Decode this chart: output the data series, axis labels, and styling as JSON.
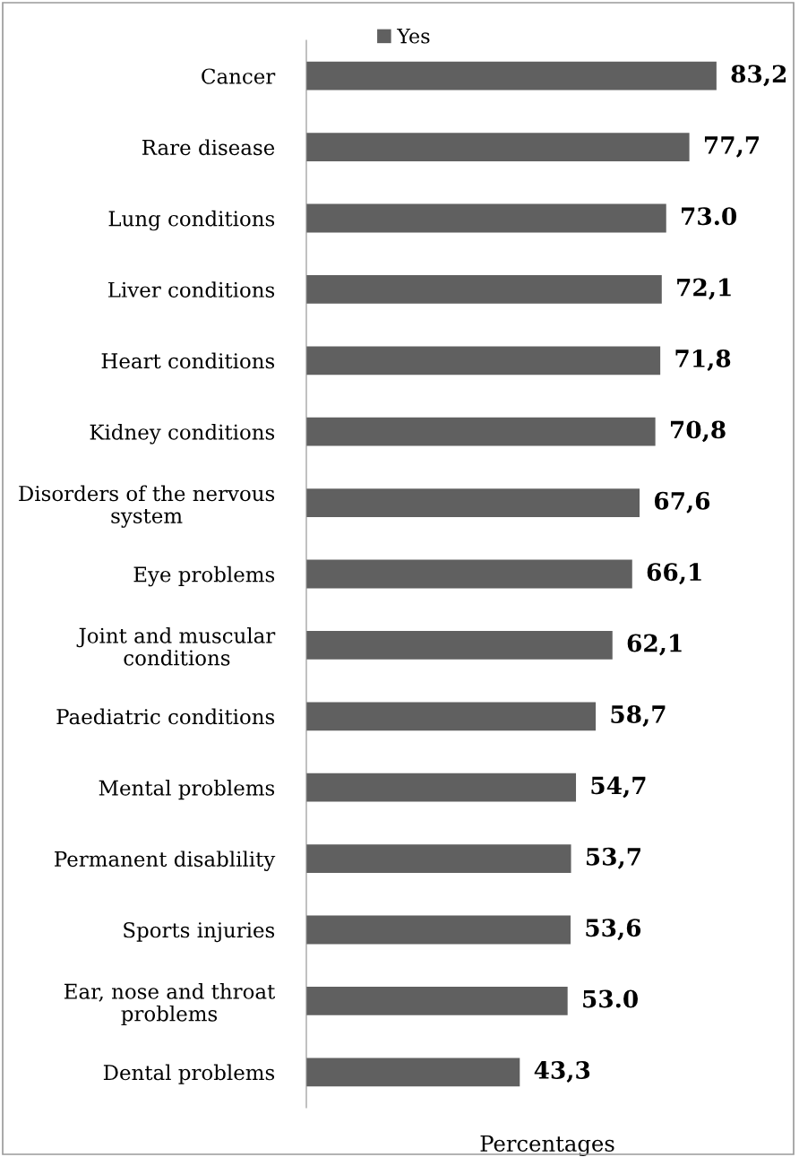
{
  "chart_data": {
    "type": "bar",
    "orientation": "horizontal",
    "xlabel": "Percentages",
    "categories": [
      "Cancer",
      "Rare disease",
      "Lung conditions",
      "Liver conditions",
      "Heart conditions",
      "Kidney conditions",
      "Disorders of the nervous\nsystem",
      "Eye problems",
      "Joint and muscular\nconditions",
      "Paediatric conditions",
      "Mental problems",
      "Permanent disablility",
      "Sports injuries",
      "Ear, nose and throat\nproblems",
      "Dental problems"
    ],
    "series": [
      {
        "name": "Yes",
        "color": "#606060",
        "values": [
          83.2,
          77.7,
          73.0,
          72.1,
          71.8,
          70.8,
          67.6,
          66.1,
          62.1,
          58.7,
          54.7,
          53.7,
          53.6,
          53.0,
          43.3
        ],
        "value_labels": [
          "83,2",
          "77,7",
          "73.0",
          "72,1",
          "71,8",
          "70,8",
          "67,6",
          "66,1",
          "62,1",
          "58,7",
          "54,7",
          "53,7",
          "53,6",
          "53.0",
          "43,3"
        ]
      }
    ],
    "legend": "top",
    "tick_labels": "y"
  }
}
